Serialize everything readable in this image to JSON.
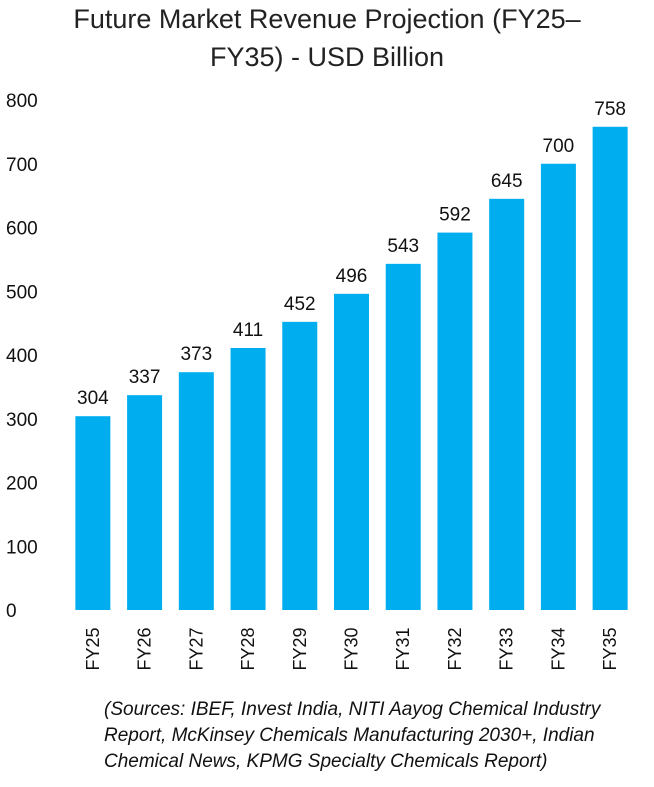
{
  "chart_data": {
    "type": "bar",
    "title_line1": "Future Market Revenue Projection (FY25–",
    "title_line2": "FY35) - USD Billion",
    "categories": [
      "FY25",
      "FY26",
      "FY27",
      "FY28",
      "FY29",
      "FY30",
      "FY31",
      "FY32",
      "FY33",
      "FY34",
      "FY35"
    ],
    "values": [
      304,
      337,
      373,
      411,
      452,
      496,
      543,
      592,
      645,
      700,
      758
    ],
    "ylim": [
      0,
      800
    ],
    "yticks": [
      0,
      100,
      200,
      300,
      400,
      500,
      600,
      700,
      800
    ],
    "xlabel": "",
    "ylabel": "",
    "grid": false,
    "bar_color": "#00aeef"
  },
  "sources": {
    "line1": "(Sources: IBEF, Invest India, NITI Aayog Chemical Industry",
    "line2": "Report, McKinsey Chemicals Manufacturing 2030+, Indian",
    "line3": "Chemical News, KPMG Specialty Chemicals Report)"
  }
}
